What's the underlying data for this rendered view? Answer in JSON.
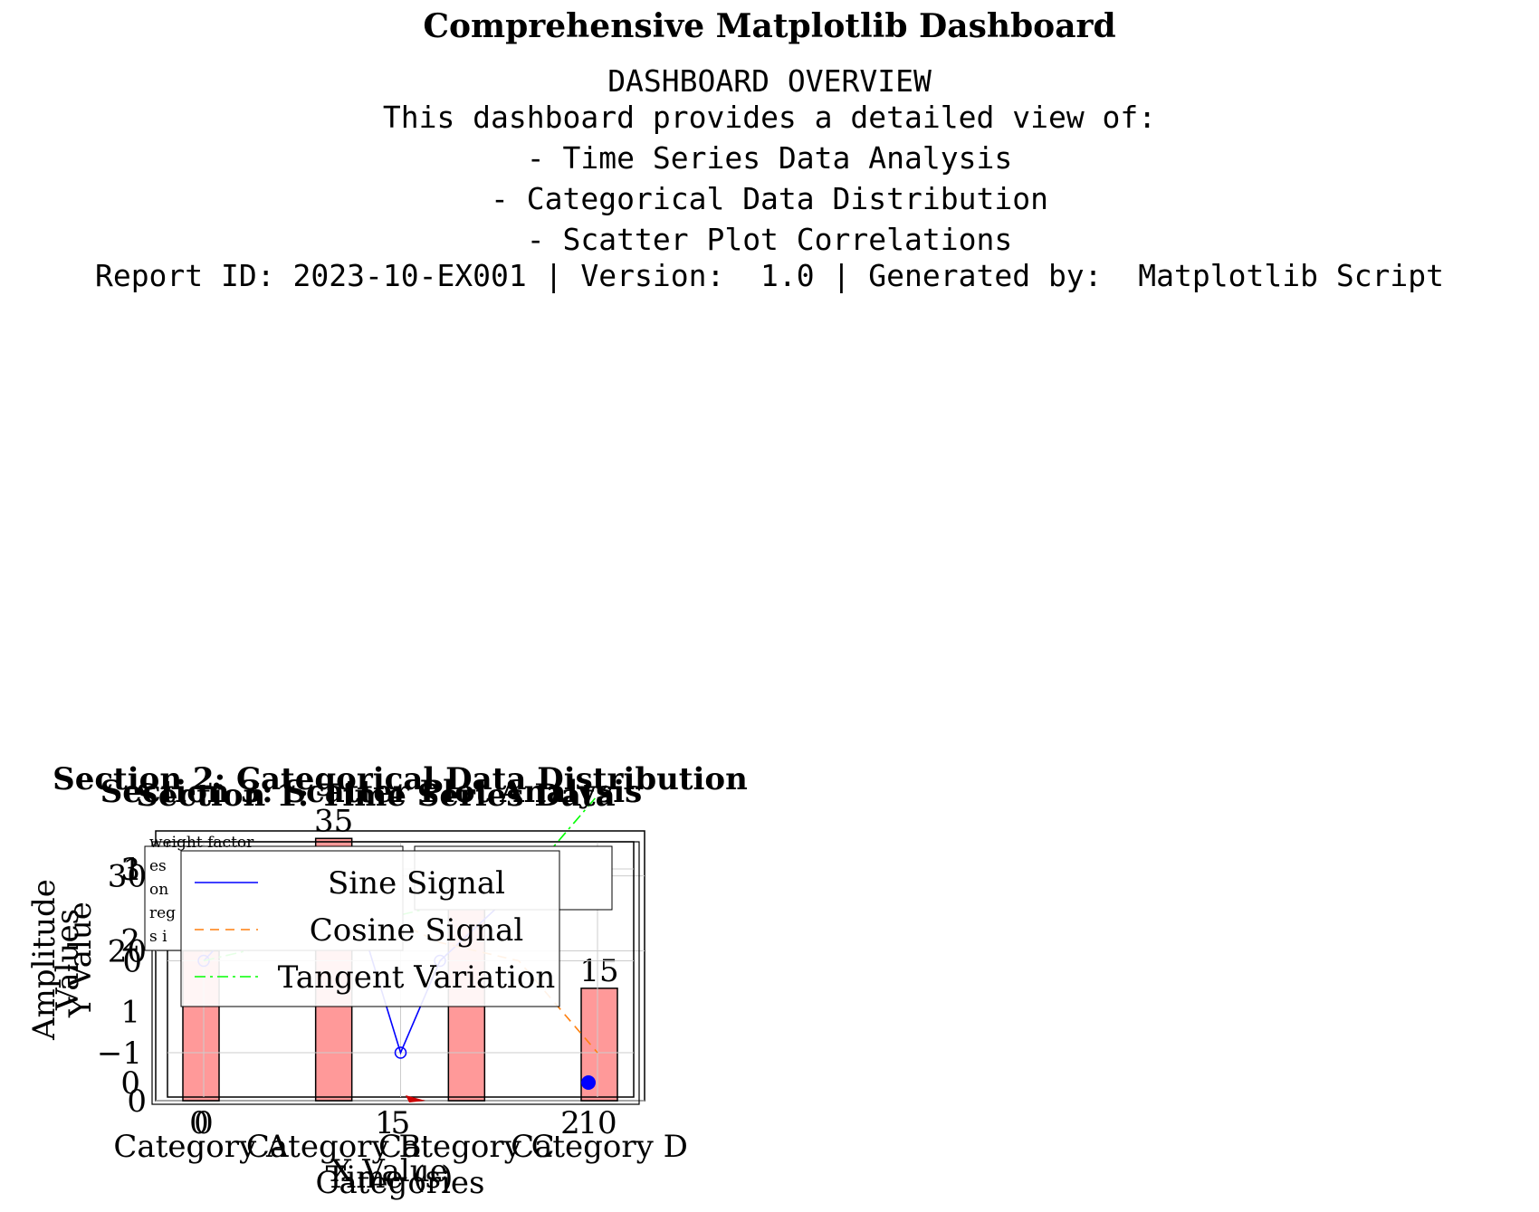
{
  "suptitle": "Comprehensive Matplotlib Dashboard",
  "overview": {
    "heading": "DASHBOARD OVERVIEW",
    "intro": "This dashboard provides a detailed view of:",
    "items": [
      "- Time Series Data Analysis",
      "- Categorical Data Distribution",
      "- Scatter Plot Correlations"
    ],
    "footer": "Report ID: 2023-10-EX001 | Version:  1.0 | Generated by:  Matplotlib Script"
  },
  "chart_data": [
    {
      "type": "line",
      "title": "Section 1: Time Series Data",
      "xlabel": "Time (s)",
      "ylabel": "Amplitude",
      "x": [
        0,
        2,
        4,
        5,
        6,
        8,
        10
      ],
      "xticks": [
        "0",
        "5",
        "10"
      ],
      "yticks": [
        "−1",
        "0",
        "1"
      ],
      "ylim": [
        -1.1,
        1.1
      ],
      "legend_position": "upper-center",
      "grid": true,
      "series": [
        {
          "name": "Sine Signal",
          "style": "solid",
          "color": "#0000ff",
          "marker": "o",
          "values": [
            0,
            0.9,
            0.4,
            -1.0,
            0.0,
            0.8,
            1.0
          ]
        },
        {
          "name": "Cosine Signal",
          "style": "dashed",
          "color": "#ff7f0e",
          "values": [
            1.0,
            0.8,
            0.6,
            0.4,
            0.2,
            0.0,
            -1.0
          ]
        },
        {
          "name": "Tangent Variation",
          "style": "dashdot",
          "color": "#00ff00",
          "values": [
            0.0,
            0.2,
            0.4,
            0.5,
            0.6,
            0.8,
            1.8
          ]
        }
      ]
    },
    {
      "type": "bar",
      "title": "Section 2: Categorical Data Distribution",
      "xlabel": "Categories",
      "ylabel": "Values",
      "categories": [
        "Category A",
        "Category B",
        "Category C",
        "Category D"
      ],
      "values": [
        20,
        35,
        30,
        15
      ],
      "yticks": [
        "0",
        "20",
        "30"
      ],
      "ylim": [
        0,
        36
      ],
      "bar_color": "#ff9999",
      "grid": true
    },
    {
      "type": "scatter",
      "title": "Section 3: Scatter Plot Analysis",
      "xlabel": "X Value",
      "ylabel": "Y Value",
      "xticks": [
        "0",
        "1",
        "2"
      ],
      "yticks": [
        "0",
        "1",
        "2",
        "3"
      ],
      "annotation_fragments": [
        "weight factor",
        "es",
        "on",
        "reg",
        "s i"
      ],
      "marker_color": "#0000ff"
    }
  ]
}
